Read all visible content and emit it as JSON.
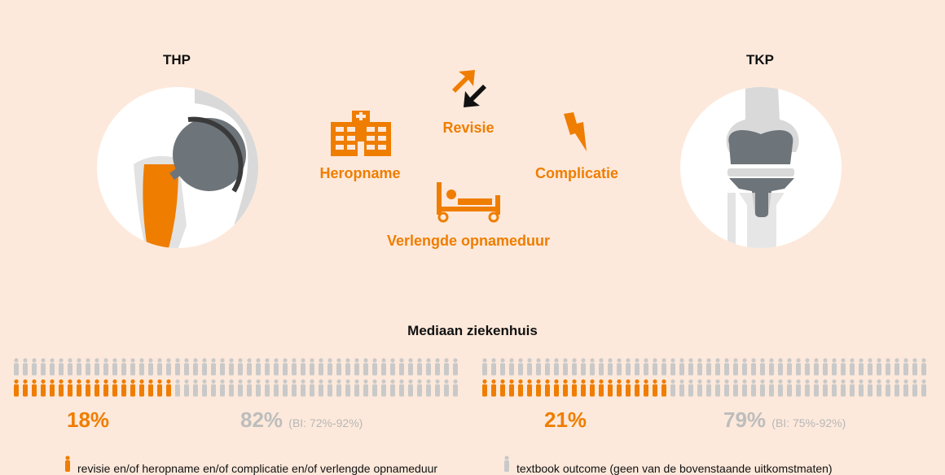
{
  "colors": {
    "accent": "#ef7d00",
    "gray": "#c9c9c9",
    "background": "#fde9db",
    "dark": "#111111"
  },
  "joints": {
    "left": {
      "label": "THP",
      "icon": "hip-prosthesis-icon"
    },
    "right": {
      "label": "TKP",
      "icon": "knee-prosthesis-icon"
    }
  },
  "outcomes": [
    {
      "label": "Revisie",
      "icon": "revision-arrows-icon"
    },
    {
      "label": "Heropname",
      "icon": "hospital-icon"
    },
    {
      "label": "Complicatie",
      "icon": "lightning-icon"
    },
    {
      "label": "Verlengde opnameduur",
      "icon": "hospital-bed-icon"
    }
  ],
  "section_title": "Mediaan ziekenhuis",
  "groups": [
    {
      "name": "THP",
      "orange_pct": "18%",
      "gray_pct": "82%",
      "ci": "(BI: 72%-92%)",
      "orange_share": 0.18
    },
    {
      "name": "TKP",
      "orange_pct": "21%",
      "gray_pct": "79%",
      "ci": "(BI: 75%-92%)",
      "orange_share": 0.21
    }
  ],
  "legend": [
    {
      "text": "revisie en/of heropname en/of complicatie en/of verlengde opnameduur",
      "icon": "person-orange-icon"
    },
    {
      "text": "textbook outcome (geen van de bovenstaande uitkomstmaten)",
      "icon": "person-gray-icon"
    }
  ]
}
